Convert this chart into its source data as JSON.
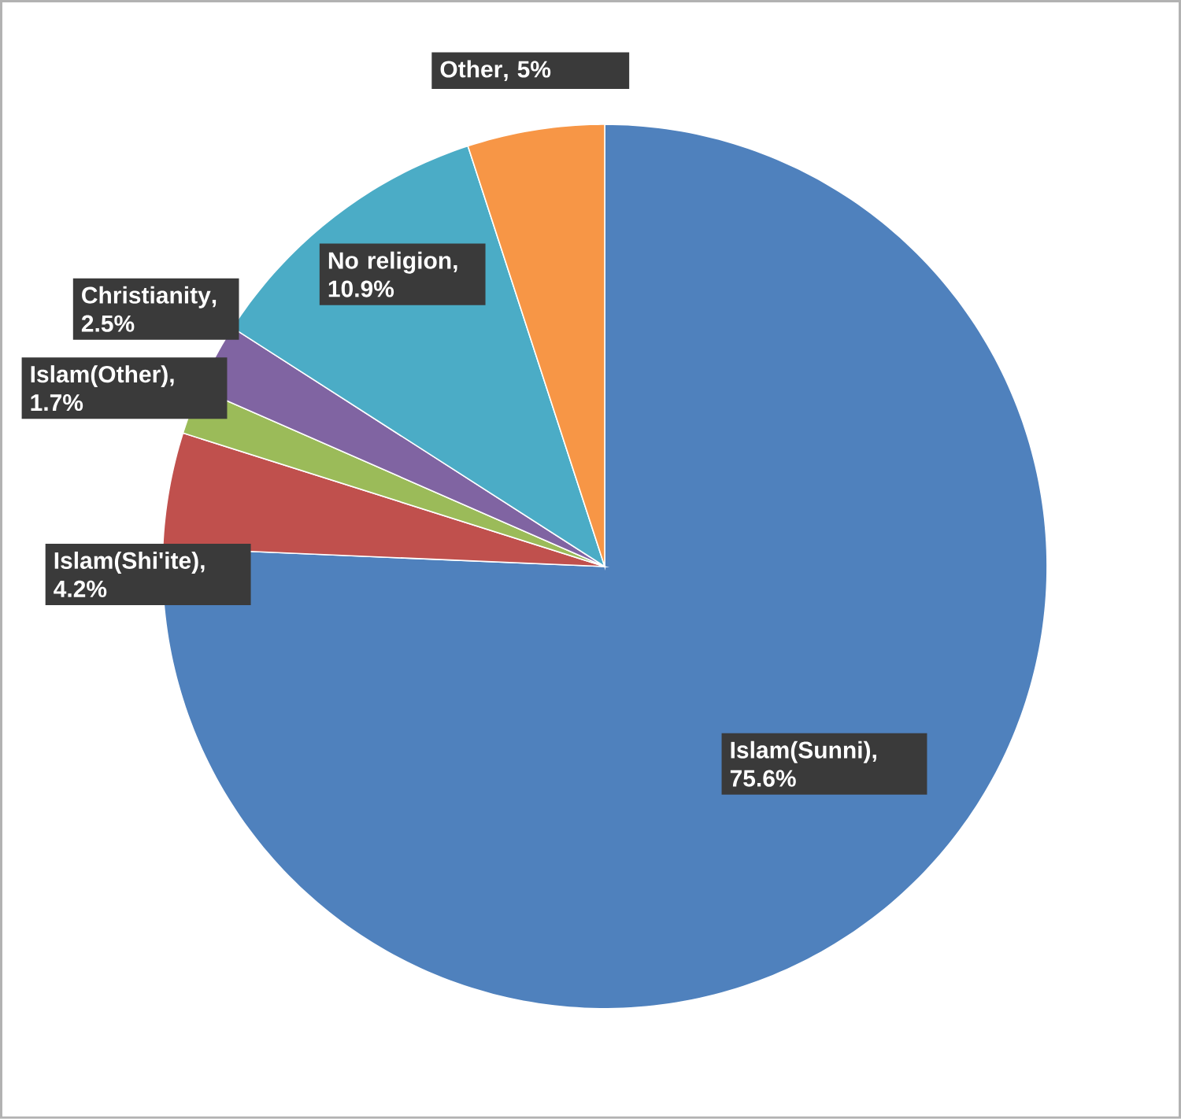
{
  "chart_data": {
    "type": "pie",
    "categories": [
      "Islam(Sunni)",
      "Islam(Shi'ite)",
      "Islam(Other)",
      "Christianity",
      "No religion",
      "Other"
    ],
    "values": [
      75.6,
      4.2,
      1.7,
      2.5,
      10.9,
      5
    ],
    "value_labels": [
      ", 75.6%",
      ", 4.2%",
      ", 1.7%",
      ", 2.5%",
      ", 10.9%",
      ", 5%"
    ],
    "colors": [
      "#4f81bd",
      "#c0504d",
      "#9bbb59",
      "#8064a2",
      "#4bacc6",
      "#f79646"
    ]
  }
}
